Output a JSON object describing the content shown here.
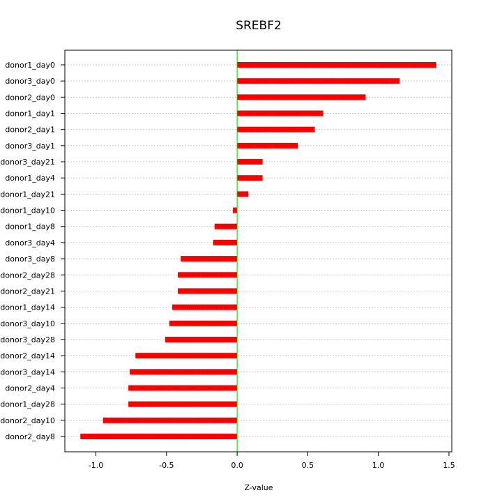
{
  "chart_data": {
    "type": "bar",
    "orientation": "horizontal",
    "title": "SREBF2",
    "xlabel": "Z-value",
    "ylabel": "",
    "xlim": [
      -1.22,
      1.52
    ],
    "x_ticks": [
      -1.0,
      -0.5,
      0.0,
      0.5,
      1.0,
      1.5
    ],
    "x_tick_labels": [
      "-1.0",
      "-0.5",
      "0.0",
      "0.5",
      "1.0",
      "1.5"
    ],
    "grid": "horizontal dotted",
    "reference_line_x": 0,
    "colors": {
      "bar": "#ff0000",
      "bar_stripe": "#b00000",
      "zero_line": "#00cc00",
      "grid": "#c8c8c8"
    },
    "categories": [
      "donor1_day0",
      "donor3_day0",
      "donor2_day0",
      "donor1_day1",
      "donor2_day1",
      "donor3_day1",
      "donor3_day21",
      "donor1_day4",
      "donor1_day21",
      "donor1_day10",
      "donor1_day8",
      "donor3_day4",
      "donor3_day8",
      "donor2_day28",
      "donor2_day21",
      "donor1_day14",
      "donor3_day10",
      "donor3_day28",
      "donor2_day14",
      "donor3_day14",
      "donor2_day4",
      "donor1_day28",
      "donor2_day10",
      "donor2_day8"
    ],
    "values": [
      1.41,
      1.15,
      0.91,
      0.61,
      0.55,
      0.43,
      0.18,
      0.18,
      0.08,
      -0.03,
      -0.16,
      -0.17,
      -0.4,
      -0.42,
      -0.42,
      -0.46,
      -0.48,
      -0.51,
      -0.72,
      -0.76,
      -0.77,
      -0.77,
      -0.95,
      -1.11
    ]
  }
}
